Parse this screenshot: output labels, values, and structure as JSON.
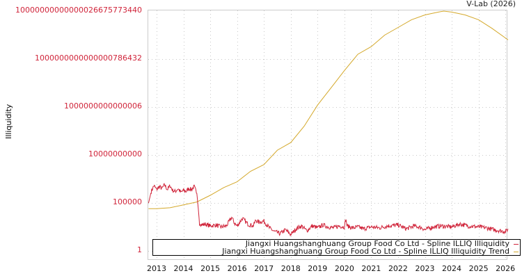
{
  "header": {
    "credit": "V-Lab (2026)"
  },
  "axes": {
    "ylabel": "Illiquidity",
    "yticks": [
      {
        "label": "10000000000000026675773440",
        "exp": 25
      },
      {
        "label": "1000000000000000786432",
        "exp": 20
      },
      {
        "label": "1000000000000006",
        "exp": 15
      },
      {
        "label": "10000000000",
        "exp": 10
      },
      {
        "label": "100000",
        "exp": 5
      },
      {
        "label": "1",
        "exp": 0
      }
    ],
    "xticks": [
      "2013",
      "2014",
      "2015",
      "2016",
      "2017",
      "2018",
      "2019",
      "2020",
      "2021",
      "2022",
      "2023",
      "2024",
      "2025",
      "2026"
    ]
  },
  "legend": {
    "items": [
      {
        "label": "Jiangxi Huangshanghuang Group Food Co Ltd - Spline ILLIQ Illiquidity",
        "color": "#d0243a"
      },
      {
        "label": "Jiangxi Huangshanghuang Group Food Co Ltd - Spline ILLIQ Illiquidity Trend",
        "color": "#d4a82a"
      }
    ]
  },
  "colors": {
    "series": "#d0243a",
    "trend": "#d4a82a",
    "grid": "#c8c8c8",
    "frame": "#cccccc",
    "ytick_text": "#d0243a"
  },
  "chart_data": {
    "type": "line",
    "title": "",
    "xlabel": "",
    "ylabel": "Illiquidity",
    "yscale": "log",
    "ylim": [
      1,
      1e+25
    ],
    "xlim": [
      2012.7,
      2026.1
    ],
    "grid": true,
    "legend_position": "bottom-inside",
    "series": [
      {
        "name": "Jiangxi Huangshanghuang Group Food Co Ltd - Spline ILLIQ Illiquidity",
        "x": [
          2012.7,
          2012.8,
          2012.9,
          2013.0,
          2013.1,
          2013.2,
          2013.3,
          2013.4,
          2013.5,
          2013.6,
          2013.7,
          2013.8,
          2013.9,
          2014.0,
          2014.1,
          2014.2,
          2014.3,
          2014.4,
          2014.5,
          2014.55,
          2014.6,
          2014.7,
          2014.8,
          2015.0,
          2015.2,
          2015.4,
          2015.6,
          2015.8,
          2015.9,
          2016.0,
          2016.2,
          2016.4,
          2016.6,
          2016.7,
          2016.8,
          2017.0,
          2017.2,
          2017.4,
          2017.6,
          2017.8,
          2018.0,
          2018.2,
          2018.4,
          2018.6,
          2018.8,
          2019.0,
          2019.2,
          2019.4,
          2019.6,
          2019.8,
          2020.0,
          2020.05,
          2020.1,
          2020.3,
          2020.5,
          2020.7,
          2021.0,
          2021.3,
          2021.6,
          2022.0,
          2022.3,
          2022.6,
          2022.9,
          2023.0,
          2023.3,
          2023.6,
          2024.0,
          2024.3,
          2024.6,
          2025.0,
          2025.3,
          2025.6,
          2026.0,
          2026.1
        ],
        "values_log10": [
          5.0,
          6.2,
          6.8,
          6.4,
          6.7,
          6.5,
          6.9,
          6.4,
          6.8,
          6.3,
          6.2,
          6.5,
          6.1,
          6.3,
          6.2,
          6.5,
          6.4,
          6.7,
          6.0,
          4.5,
          2.9,
          2.7,
          2.8,
          2.6,
          2.7,
          2.5,
          2.6,
          3.5,
          2.9,
          2.6,
          3.4,
          2.8,
          2.6,
          3.2,
          3.0,
          3.1,
          2.4,
          2.0,
          1.8,
          2.2,
          1.7,
          2.3,
          2.6,
          2.1,
          2.6,
          2.4,
          2.7,
          2.5,
          2.4,
          2.6,
          2.5,
          3.3,
          2.6,
          2.4,
          2.5,
          2.3,
          2.5,
          2.4,
          2.6,
          2.7,
          2.3,
          2.6,
          2.4,
          2.2,
          2.5,
          2.6,
          2.5,
          2.8,
          2.6,
          2.5,
          2.4,
          2.2,
          2.0,
          2.3
        ]
      },
      {
        "name": "Jiangxi Huangshanghuang Group Food Co Ltd - Spline ILLIQ Illiquidity Trend",
        "x": [
          2012.7,
          2013.0,
          2013.5,
          2014.0,
          2014.5,
          2015.0,
          2015.5,
          2016.0,
          2016.5,
          2017.0,
          2017.5,
          2018.0,
          2018.5,
          2019.0,
          2019.5,
          2020.0,
          2020.5,
          2021.0,
          2021.5,
          2022.0,
          2022.5,
          2023.0,
          2023.5,
          2023.7,
          2024.0,
          2024.5,
          2025.0,
          2025.5,
          2026.1
        ],
        "values_log10": [
          4.4,
          4.4,
          4.5,
          4.8,
          5.1,
          5.8,
          6.6,
          7.2,
          8.3,
          9.0,
          10.5,
          11.3,
          13.0,
          15.2,
          17.0,
          18.8,
          20.5,
          21.3,
          22.5,
          23.3,
          24.1,
          24.6,
          24.9,
          25.0,
          24.9,
          24.6,
          24.1,
          23.2,
          22.0
        ]
      }
    ]
  }
}
